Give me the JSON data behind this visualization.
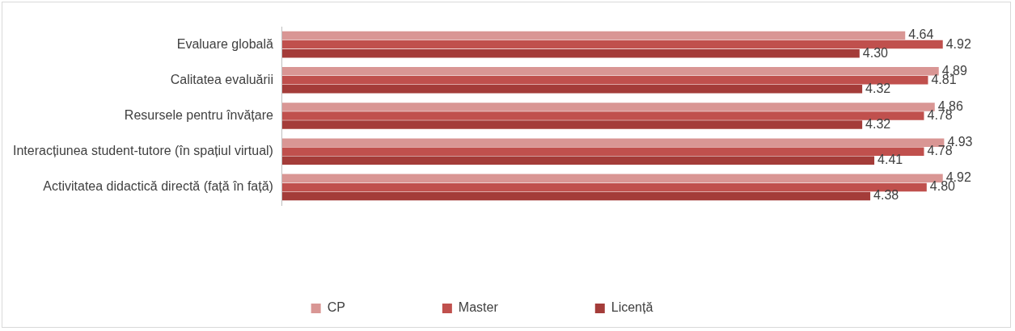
{
  "chart_data": {
    "type": "bar",
    "orientation": "horizontal",
    "categories": [
      "Evaluare globală",
      "Calitatea evaluării",
      "Resursele pentru învățare",
      "Interacțiunea student-tutore (în spațiul virtual)",
      "Activitatea didactică directă (față în față)"
    ],
    "series": [
      {
        "name": "CP",
        "color": "#d99694",
        "values": [
          4.64,
          4.89,
          4.86,
          4.93,
          4.92
        ],
        "value_labels": [
          "4.64",
          "4.89",
          "4.86",
          "4.93",
          "4.92"
        ]
      },
      {
        "name": "Master",
        "color": "#c0504d",
        "values": [
          4.92,
          4.81,
          4.78,
          4.78,
          4.8
        ],
        "value_labels": [
          "4.92",
          "4.81",
          "4.78",
          "4.78",
          "4.80"
        ]
      },
      {
        "name": "Licență",
        "color": "#a43c39",
        "values": [
          4.3,
          4.32,
          4.32,
          4.41,
          4.38
        ],
        "value_labels": [
          "4.30",
          "4.32",
          "4.32",
          "4.41",
          "4.38"
        ]
      }
    ],
    "tick_labels": "y",
    "legend": "bottom"
  }
}
